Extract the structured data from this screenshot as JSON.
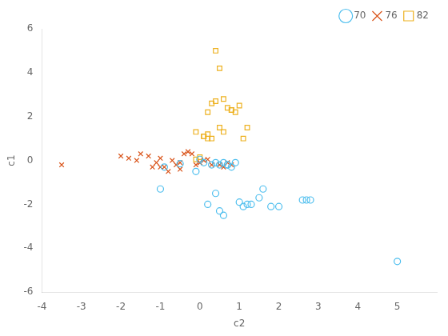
{
  "chart_data": {
    "type": "scatter",
    "x_label": "c2",
    "y_label": "c1",
    "xlim": [
      -4,
      6
    ],
    "ylim": [
      -6,
      6
    ],
    "xticks": [
      -4,
      -3,
      -2,
      -1,
      0,
      1,
      2,
      3,
      4,
      5
    ],
    "yticks": [
      -6,
      -4,
      -2,
      0,
      2,
      4,
      6
    ],
    "grid": false,
    "legend": "upper right",
    "series": [
      {
        "name": "70",
        "marker": "circle",
        "color": "#4DBEEE",
        "x": [
          -1.0,
          -0.9,
          -0.5,
          0.0,
          0.1,
          0.3,
          0.4,
          0.5,
          0.6,
          0.7,
          0.8,
          0.9,
          1.0,
          1.1,
          1.2,
          1.3,
          1.5,
          1.6,
          1.8,
          2.0,
          2.6,
          2.7,
          2.8,
          5.0,
          0.4,
          0.5,
          0.6,
          0.2,
          -0.1,
          0.7
        ],
        "values": [
          -1.3,
          -0.3,
          -0.15,
          0.05,
          -0.1,
          -0.2,
          -0.1,
          -0.2,
          -0.1,
          -0.2,
          -0.3,
          -0.1,
          -1.9,
          -2.1,
          -2.0,
          -2.0,
          -1.7,
          -1.3,
          -2.1,
          -2.1,
          -1.8,
          -1.8,
          -1.8,
          -4.6,
          -1.5,
          -2.3,
          -2.5,
          -2.0,
          -0.5,
          -0.2
        ]
      },
      {
        "name": "76",
        "marker": "x",
        "color": "#D95319",
        "x": [
          -3.5,
          -2.0,
          -1.8,
          -1.6,
          -1.5,
          -1.3,
          -1.2,
          -1.1,
          -1.0,
          -0.9,
          -0.8,
          -0.7,
          -0.6,
          -0.5,
          -0.4,
          -0.3,
          -0.2,
          -0.1,
          0.0,
          0.1,
          0.2,
          0.3,
          0.5,
          0.6,
          0.7,
          0.8,
          -1.0,
          -0.5,
          0.0
        ],
        "values": [
          -0.2,
          0.2,
          0.1,
          0.0,
          0.3,
          0.2,
          -0.3,
          -0.1,
          0.1,
          -0.3,
          -0.5,
          0.0,
          -0.2,
          -0.1,
          0.3,
          0.4,
          0.3,
          -0.2,
          -0.1,
          0.0,
          0.05,
          -0.2,
          -0.2,
          -0.3,
          -0.1,
          -0.2,
          -0.3,
          -0.4,
          -0.1
        ]
      },
      {
        "name": "82",
        "marker": "square",
        "color": "#EDB120",
        "x": [
          -0.1,
          0.0,
          0.1,
          0.2,
          0.3,
          0.4,
          0.4,
          0.5,
          0.6,
          0.7,
          0.8,
          0.9,
          1.0,
          1.1,
          1.2,
          0.3,
          0.2,
          -0.1,
          0.5,
          0.6,
          0.2,
          0.1,
          0.8
        ],
        "values": [
          0.05,
          0.15,
          1.1,
          2.2,
          2.6,
          2.7,
          5.0,
          4.2,
          2.8,
          2.4,
          2.3,
          2.2,
          2.5,
          1.0,
          1.5,
          1.0,
          1.2,
          1.3,
          1.5,
          1.3,
          1.0,
          1.1,
          2.3
        ]
      }
    ]
  }
}
